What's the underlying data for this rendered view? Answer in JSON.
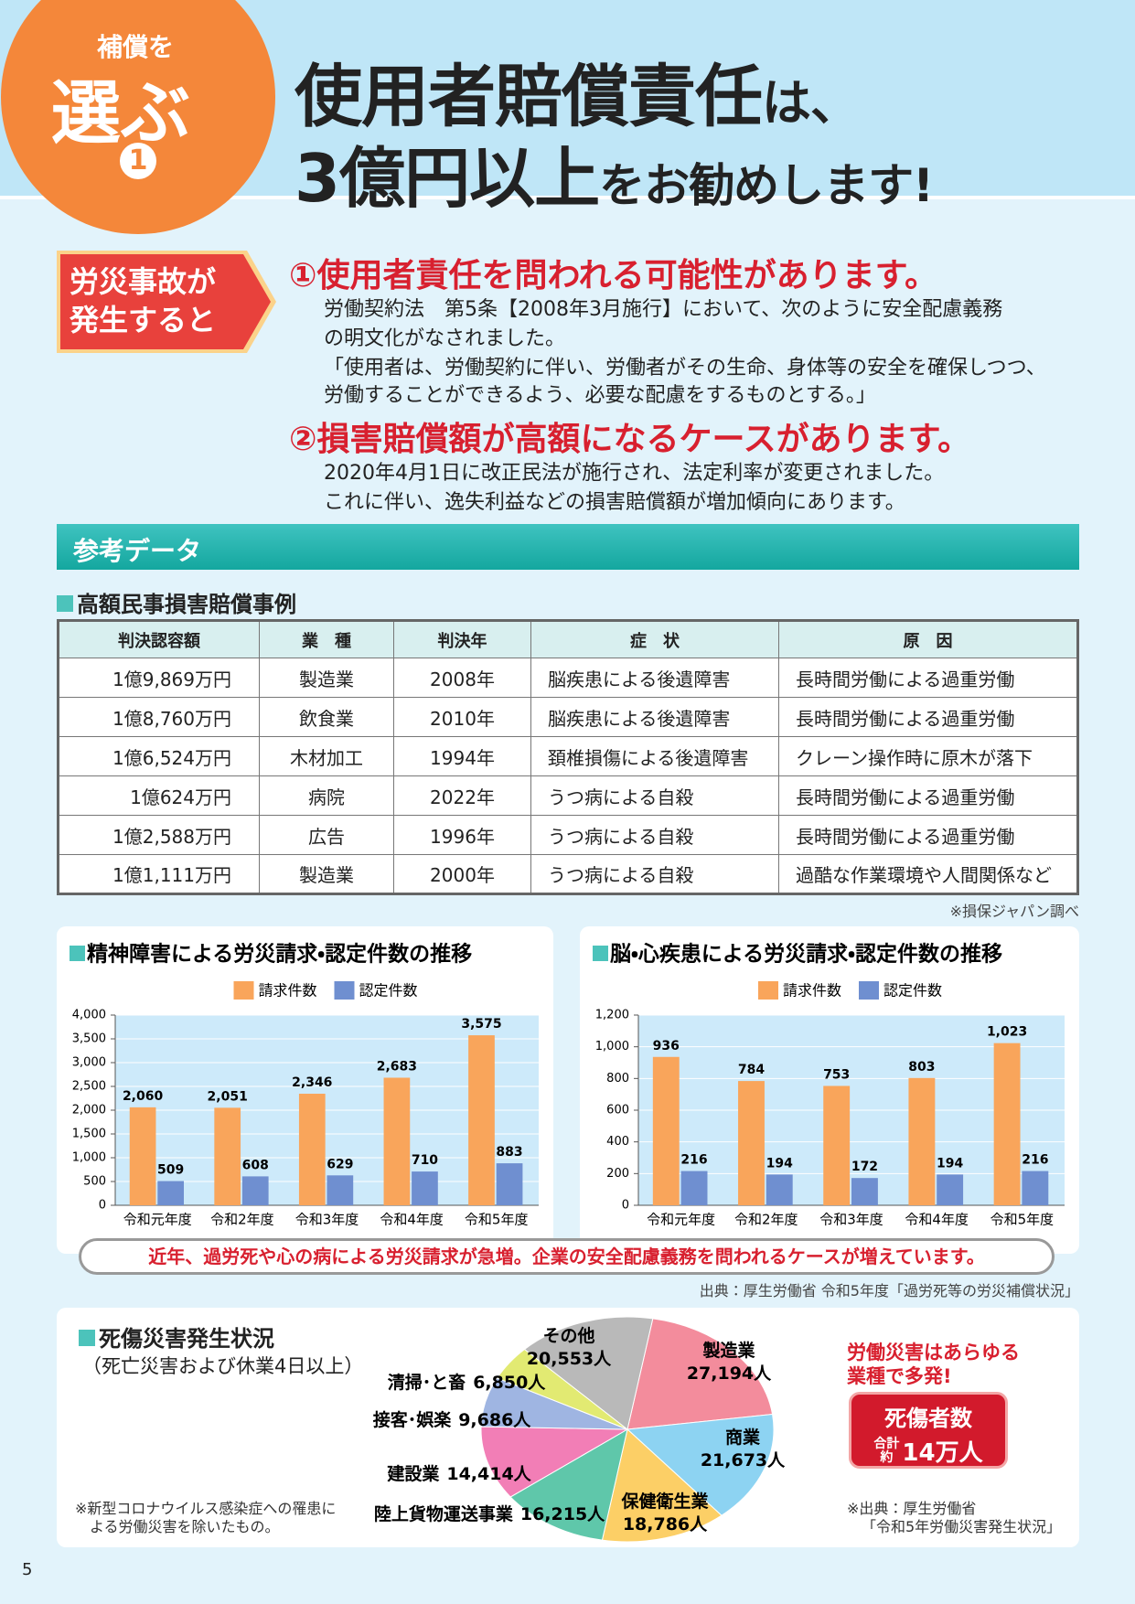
{
  "header": {
    "badge_top": "補償を",
    "badge_main": "選ぶ",
    "badge_num": "1",
    "title_line1_main": "使用者賠償責任",
    "title_line1_tail": "は、",
    "title_line2_main": "3億円以上",
    "title_line2_tail": "をお勧めします!"
  },
  "intro": {
    "badge_lines": [
      "労災事故が",
      "発生すると"
    ],
    "point1": {
      "heading": "①使用者責任を問われる可能性があります。",
      "lines": [
        "労働契約法　第5条【2008年3月施行】において、次のように安全配慮義務",
        "の明文化がなされました。",
        "「使用者は、労働契約に伴い、労働者がその生命、身体等の安全を確保しつつ、",
        "労働することができるよう、必要な配慮をするものとする。」"
      ]
    },
    "point2": {
      "heading": "②損害賠償額が高額になるケースがあります。",
      "lines": [
        "2020年4月1日に改正民法が施行され、法定利率が変更されました。",
        "これに伴い、逸失利益などの損害賠償額が増加傾向にあります。"
      ]
    }
  },
  "reference": {
    "title": "参考データ"
  },
  "table": {
    "title": "高額民事損害賠償事例",
    "headers": [
      "判決認容額",
      "業　種",
      "判決年",
      "症　状",
      "原　因"
    ],
    "rows": [
      [
        "1億9,869万円",
        "製造業",
        "2008年",
        "脳疾患による後遺障害",
        "長時間労働による過重労働"
      ],
      [
        "1億8,760万円",
        "飲食業",
        "2010年",
        "脳疾患による後遺障害",
        "長時間労働による過重労働"
      ],
      [
        "1億6,524万円",
        "木材加工",
        "1994年",
        "頚椎損傷による後遺障害",
        "クレーン操作時に原木が落下"
      ],
      [
        "1億624万円",
        "病院",
        "2022年",
        "うつ病による自殺",
        "長時間労働による過重労働"
      ],
      [
        "1億2,588万円",
        "広告",
        "1996年",
        "うつ病による自殺",
        "長時間労働による過重労働"
      ],
      [
        "1億1,111万円",
        "製造業",
        "2000年",
        "うつ病による自殺",
        "過酷な作業環境や人間関係など"
      ]
    ],
    "note": "※損保ジャパン調べ"
  },
  "chart_data": [
    {
      "type": "bar",
      "title": "精神障害による労災請求・認定件数の推移",
      "categories": [
        "令和元年度",
        "令和2年度",
        "令和3年度",
        "令和4年度",
        "令和5年度"
      ],
      "series": [
        {
          "name": "請求件数",
          "color": "#f9a55b",
          "values": [
            2060,
            2051,
            2346,
            2683,
            3575
          ],
          "value_labels": [
            "2,060",
            "2,051",
            "2,346",
            "2,683",
            "3,575"
          ]
        },
        {
          "name": "認定件数",
          "color": "#6f8fd0",
          "values": [
            509,
            608,
            629,
            710,
            883
          ]
        }
      ],
      "ylim": [
        0,
        4000
      ],
      "yticks": [
        0,
        500,
        {
          "value": 1000,
          "label": "1,000"
        },
        {
          "value": 1500,
          "label": "1,500"
        },
        {
          "value": 2000,
          "label": "2,000"
        },
        {
          "value": 2500,
          "label": "2,500"
        },
        {
          "value": 3000,
          "label": "3,000"
        },
        {
          "value": 3500,
          "label": "3,500"
        },
        {
          "value": 4000,
          "label": "4,000"
        }
      ],
      "grid": true
    },
    {
      "type": "bar",
      "title": "脳・心疾患による労災請求・認定件数の推移",
      "categories": [
        "令和元年度",
        "令和2年度",
        "令和3年度",
        "令和4年度",
        "令和5年度"
      ],
      "series": [
        {
          "name": "請求件数",
          "color": "#f9a55b",
          "values": [
            936,
            784,
            753,
            803,
            1023
          ],
          "value_labels": [
            "936",
            "784",
            "753",
            "803",
            "1,023"
          ]
        },
        {
          "name": "認定件数",
          "color": "#6f8fd0",
          "values": [
            216,
            194,
            172,
            194,
            216
          ]
        }
      ],
      "ylim": [
        0,
        1200
      ],
      "yticks": [
        0,
        200,
        400,
        600,
        800,
        {
          "value": 1000,
          "label": "1,000"
        },
        {
          "value": 1200,
          "label": "1,200"
        }
      ],
      "grid": true
    },
    {
      "type": "pie",
      "title": "死傷災害発生状況",
      "subtitle": "（死亡災害および休業4日以上）",
      "categories": [
        "製造業",
        "商業",
        "保健衛生業",
        "陸上貨物運送事業",
        "建設業",
        "接客･娯楽",
        "清掃･と畜",
        "その他"
      ],
      "values": [
        27194,
        21673,
        18786,
        16215,
        14414,
        9686,
        6850,
        20553
      ],
      "value_labels": [
        "27,194人",
        "21,673人",
        "18,786人",
        "16,215人",
        "14,414人",
        "9,686人",
        "6,850人",
        "20,553人"
      ],
      "colors": [
        "#f38c9c",
        "#8dd3f2",
        "#fccf66",
        "#5fc7aa",
        "#f27eb6",
        "#9fb5e2",
        "#e2ea72",
        "#b9b9b9"
      ]
    }
  ],
  "callout": "近年、過労死や心の病による労災請求が急増。企業の安全配慮義務を問われるケースが増えています。",
  "chart_source": "出典：厚生労働省 令和5年度「過労死等の労災補償状況」",
  "pie_notes": {
    "exclusion": "※新型コロナウイルス感染症への罹患による労働災害を除いたもの。",
    "source_lines": [
      "※出典：厚生労働省",
      "「令和5年労働災害発生状況」"
    ],
    "highlight_lines": [
      "労働災害はあらゆる",
      "業種で多発!"
    ],
    "total_badge": {
      "label": "死傷者数",
      "prefix_top": "合計",
      "prefix_bottom": "約",
      "value": "14万人"
    }
  },
  "page_number": "5"
}
